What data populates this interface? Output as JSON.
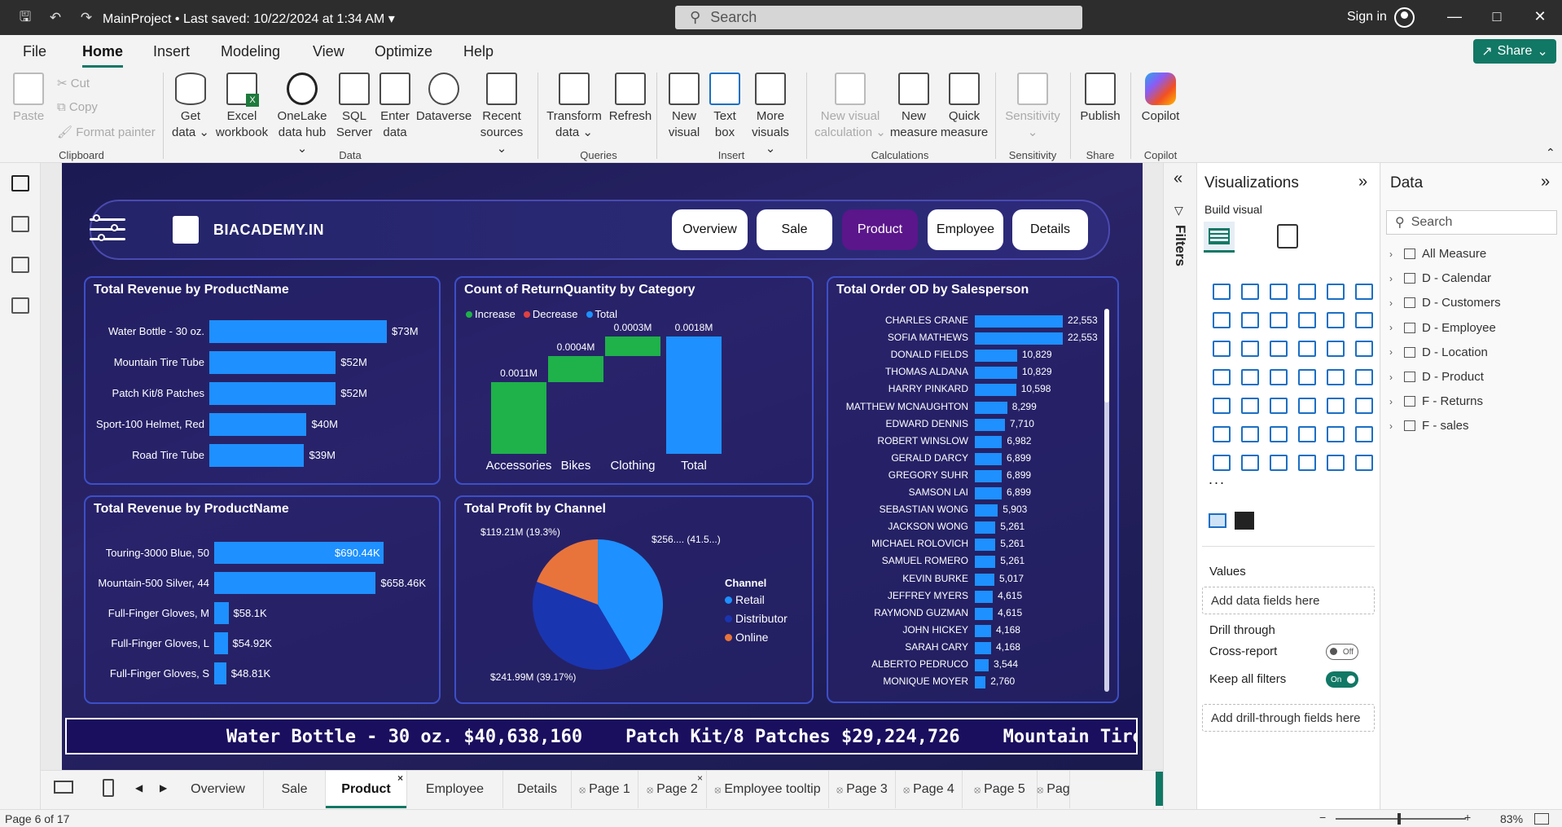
{
  "titlebar": {
    "title": "MainProject • Last saved: 10/22/2024 at 1:34 AM",
    "search_placeholder": "Search",
    "signin": "Sign in"
  },
  "menu": {
    "items": [
      "File",
      "Home",
      "Insert",
      "Modeling",
      "View",
      "Optimize",
      "Help"
    ],
    "active": "Home",
    "share": "Share"
  },
  "ribbon": {
    "clipboard": {
      "paste": "Paste",
      "cut": "Cut",
      "copy": "Copy",
      "format_painter": "Format painter",
      "label": "Clipboard"
    },
    "data": {
      "buttons": [
        {
          "l1": "Get",
          "l2": "data"
        },
        {
          "l1": "Excel",
          "l2": "workbook"
        },
        {
          "l1": "OneLake",
          "l2": "data hub"
        },
        {
          "l1": "SQL",
          "l2": "Server"
        },
        {
          "l1": "Enter",
          "l2": "data"
        },
        {
          "l1": "Dataverse",
          "l2": ""
        },
        {
          "l1": "Recent",
          "l2": "sources"
        }
      ],
      "label": "Data"
    },
    "queries": {
      "transform": {
        "l1": "Transform",
        "l2": "data"
      },
      "refresh": "Refresh",
      "label": "Queries"
    },
    "insert": {
      "new_visual": {
        "l1": "New",
        "l2": "visual"
      },
      "text_box": {
        "l1": "Text",
        "l2": "box"
      },
      "more_visuals": {
        "l1": "More",
        "l2": "visuals"
      },
      "label": "Insert"
    },
    "calculations": {
      "new_visual_calc": {
        "l1": "New visual",
        "l2": "calculation"
      },
      "new_measure": {
        "l1": "New",
        "l2": "measure"
      },
      "quick_measure": {
        "l1": "Quick",
        "l2": "measure"
      },
      "label": "Calculations"
    },
    "sensitivity": {
      "btn": "Sensitivity",
      "label": "Sensitivity"
    },
    "share": {
      "publish": "Publish",
      "label": "Share"
    },
    "copilot": {
      "btn": "Copilot",
      "label": "Copilot"
    }
  },
  "report": {
    "logo_text": "BIACADEMY.IN",
    "nav": [
      "Overview",
      "Sale",
      "Product",
      "Employee",
      "Details"
    ],
    "nav_active": "Product",
    "panel1": {
      "title": "Total Revenue by ProductName",
      "rows": [
        {
          "label": "Water Bottle - 30 oz.",
          "value": 73,
          "text": "$73M"
        },
        {
          "label": "Mountain Tire Tube",
          "value": 52,
          "text": "$52M"
        },
        {
          "label": "Patch Kit/8 Patches",
          "value": 52,
          "text": "$52M"
        },
        {
          "label": "Sport-100 Helmet, Red",
          "value": 40,
          "text": "$40M"
        },
        {
          "label": "Road Tire Tube",
          "value": 39,
          "text": "$39M"
        }
      ]
    },
    "panel2": {
      "title": "Count of ReturnQuantity by Category",
      "legend": [
        {
          "label": "Increase",
          "color": "#1fb14a"
        },
        {
          "label": "Decrease",
          "color": "#e04040"
        },
        {
          "label": "Total",
          "color": "#1e90ff"
        }
      ],
      "steps": [
        {
          "category": "Accessories",
          "value": "0.0011M"
        },
        {
          "category": "Bikes",
          "value": "0.0004M"
        },
        {
          "category": "Clothing",
          "value": "0.0003M"
        },
        {
          "category": "Total",
          "value": "0.0018M"
        }
      ]
    },
    "panel3": {
      "title": "Total Order OD by Salesperson",
      "rows": [
        {
          "name": "CHARLES CRANE",
          "value": 22553,
          "text": "22,553"
        },
        {
          "name": "SOFIA MATHEWS",
          "value": 22553,
          "text": "22,553"
        },
        {
          "name": "DONALD FIELDS",
          "value": 10829,
          "text": "10,829"
        },
        {
          "name": "THOMAS ALDANA",
          "value": 10829,
          "text": "10,829"
        },
        {
          "name": "HARRY PINKARD",
          "value": 10598,
          "text": "10,598"
        },
        {
          "name": "MATTHEW MCNAUGHTON",
          "value": 8299,
          "text": "8,299"
        },
        {
          "name": "EDWARD DENNIS",
          "value": 7710,
          "text": "7,710"
        },
        {
          "name": "ROBERT WINSLOW",
          "value": 6982,
          "text": "6,982"
        },
        {
          "name": "GERALD DARCY",
          "value": 6899,
          "text": "6,899"
        },
        {
          "name": "GREGORY SUHR",
          "value": 6899,
          "text": "6,899"
        },
        {
          "name": "SAMSON LAI",
          "value": 6899,
          "text": "6,899"
        },
        {
          "name": "SEBASTIAN WONG",
          "value": 5903,
          "text": "5,903"
        },
        {
          "name": "JACKSON WONG",
          "value": 5261,
          "text": "5,261"
        },
        {
          "name": "MICHAEL ROLOVICH",
          "value": 5261,
          "text": "5,261"
        },
        {
          "name": "SAMUEL ROMERO",
          "value": 5261,
          "text": "5,261"
        },
        {
          "name": "KEVIN BURKE",
          "value": 5017,
          "text": "5,017"
        },
        {
          "name": "JEFFREY MYERS",
          "value": 4615,
          "text": "4,615"
        },
        {
          "name": "RAYMOND GUZMAN",
          "value": 4615,
          "text": "4,615"
        },
        {
          "name": "JOHN HICKEY",
          "value": 4168,
          "text": "4,168"
        },
        {
          "name": "SARAH CARY",
          "value": 4168,
          "text": "4,168"
        },
        {
          "name": "ALBERTO PEDRUCO",
          "value": 3544,
          "text": "3,544"
        },
        {
          "name": "MONIQUE MOYER",
          "value": 2760,
          "text": "2,760"
        }
      ]
    },
    "panel4": {
      "title": "Total Revenue by ProductName",
      "rows": [
        {
          "label": "Touring-3000 Blue, 50",
          "value": 690.44,
          "text": "$690.44K"
        },
        {
          "label": "Mountain-500 Silver, 44",
          "value": 658.46,
          "text": "$658.46K"
        },
        {
          "label": "Full-Finger Gloves, M",
          "value": 58.1,
          "text": "$58.1K"
        },
        {
          "label": "Full-Finger Gloves, L",
          "value": 54.92,
          "text": "$54.92K"
        },
        {
          "label": "Full-Finger Gloves, S",
          "value": 48.81,
          "text": "$48.81K"
        }
      ]
    },
    "panel5": {
      "title": "Total Profit by Channel",
      "legend_title": "Channel",
      "slices": [
        {
          "label": "Retail",
          "pct": 41.5,
          "text": "$256.... (41.5...)",
          "color": "#1e90ff"
        },
        {
          "label": "Distributor",
          "pct": 39.17,
          "text": "$241.99M (39.17%)",
          "color": "#1a35b0"
        },
        {
          "label": "Online",
          "pct": 19.3,
          "text": "$119.21M (19.3%)",
          "color": "#e8743b"
        }
      ]
    },
    "ticker": "Water Bottle - 30 oz. $40,638,160    Patch Kit/8 Patches $29,224,726    Mountain Tire"
  },
  "chart_data": [
    {
      "type": "bar",
      "title": "Total Revenue by ProductName",
      "categories": [
        "Water Bottle - 30 oz.",
        "Mountain Tire Tube",
        "Patch Kit/8 Patches",
        "Sport-100 Helmet, Red",
        "Road Tire Tube"
      ],
      "values": [
        73,
        52,
        52,
        40,
        39
      ]
    },
    {
      "type": "bar",
      "title": "Count of ReturnQuantity by Category",
      "categories": [
        "Accessories",
        "Bikes",
        "Clothing",
        "Total"
      ],
      "values": [
        0.0011,
        0.0004,
        0.0003,
        0.0018
      ]
    },
    {
      "type": "bar",
      "title": "Total Order OD by Salesperson",
      "categories": [
        "CHARLES CRANE",
        "SOFIA MATHEWS",
        "DONALD FIELDS",
        "THOMAS ALDANA",
        "HARRY PINKARD",
        "MATTHEW MCNAUGHTON",
        "EDWARD DENNIS",
        "ROBERT WINSLOW",
        "GERALD DARCY",
        "GREGORY SUHR",
        "SAMSON LAI",
        "SEBASTIAN WONG",
        "JACKSON WONG",
        "MICHAEL ROLOVICH",
        "SAMUEL ROMERO",
        "KEVIN BURKE",
        "JEFFREY MYERS",
        "RAYMOND GUZMAN",
        "JOHN HICKEY",
        "SARAH CARY",
        "ALBERTO PEDRUCO",
        "MONIQUE MOYER"
      ],
      "values": [
        22553,
        22553,
        10829,
        10829,
        10598,
        8299,
        7710,
        6982,
        6899,
        6899,
        6899,
        5903,
        5261,
        5261,
        5261,
        5017,
        4615,
        4615,
        4168,
        4168,
        3544,
        2760
      ]
    },
    {
      "type": "bar",
      "title": "Total Revenue by ProductName",
      "categories": [
        "Touring-3000 Blue, 50",
        "Mountain-500 Silver, 44",
        "Full-Finger Gloves, M",
        "Full-Finger Gloves, L",
        "Full-Finger Gloves, S"
      ],
      "values": [
        690.44,
        658.46,
        58.1,
        54.92,
        48.81
      ]
    },
    {
      "type": "pie",
      "title": "Total Profit by Channel",
      "categories": [
        "Retail",
        "Distributor",
        "Online"
      ],
      "values": [
        41.5,
        39.17,
        19.3
      ]
    }
  ],
  "pages": [
    {
      "label": "Overview",
      "hidden": false
    },
    {
      "label": "Sale",
      "hidden": false
    },
    {
      "label": "Product",
      "hidden": false,
      "active": true
    },
    {
      "label": "Employee",
      "hidden": false
    },
    {
      "label": "Details",
      "hidden": false
    },
    {
      "label": "Page 1",
      "hidden": true
    },
    {
      "label": "Page 2",
      "hidden": true
    },
    {
      "label": "Employee tooltip",
      "hidden": true
    },
    {
      "label": "Page 3",
      "hidden": true
    },
    {
      "label": "Page 4",
      "hidden": true
    },
    {
      "label": "Page 5",
      "hidden": true
    },
    {
      "label": "Pag",
      "hidden": true
    }
  ],
  "status": {
    "page": "Page 6 of 17",
    "zoom": "83%"
  },
  "filters": {
    "label": "Filters"
  },
  "visualizations": {
    "title": "Visualizations",
    "build_visual": "Build visual",
    "values_label": "Values",
    "values_placeholder": "Add data fields here",
    "drill_through": "Drill through",
    "cross_report": "Cross-report",
    "cross_report_state": "Off",
    "keep_filters": "Keep all filters",
    "keep_filters_state": "On",
    "drill_placeholder": "Add drill-through fields here",
    "more": "..."
  },
  "data_pane": {
    "title": "Data",
    "search_placeholder": "Search",
    "tables": [
      "All Measure",
      "D - Calendar",
      "D - Customers",
      "D - Employee",
      "D - Location",
      "D - Product",
      "F - Returns",
      "F - sales"
    ]
  }
}
